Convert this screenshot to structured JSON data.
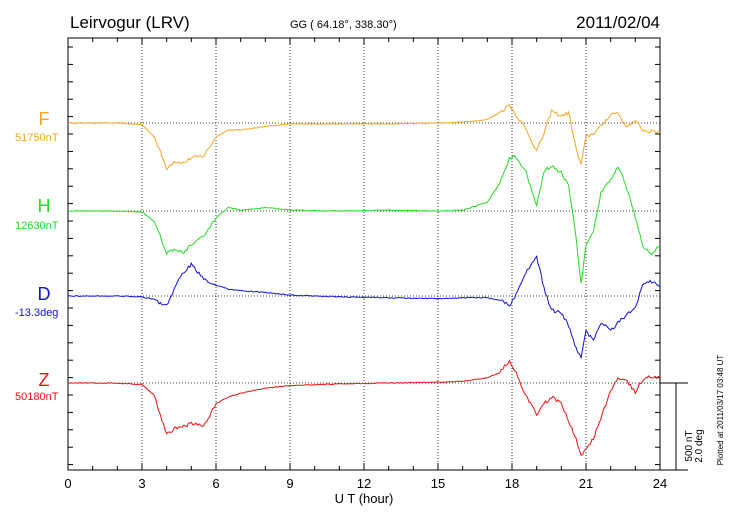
{
  "chart_data": {
    "type": "line",
    "title": "Leirvogur (LRV)",
    "coords": "GG ( 64.18°, 338.30°)",
    "date": "2011/02/04",
    "xlabel": "U T (hour)",
    "xlim": [
      0,
      24
    ],
    "xticks": [
      "0",
      "3",
      "6",
      "9",
      "12",
      "15",
      "18",
      "21",
      "24"
    ],
    "scale_nT": "500 nT",
    "scale_deg": "2.0 deg",
    "plotted_note": "Plotted at 2011/03/17 03:48 UT",
    "units_note": "baseline offsets in nT (D in deg); deviations in nT",
    "series": [
      {
        "name": "F",
        "baseline_label": "51750nT",
        "color": "#f5a623",
        "x": [
          0,
          2,
          3,
          3.5,
          4,
          4.3,
          4.7,
          5,
          5.5,
          6,
          6.5,
          7,
          8,
          9,
          11,
          13,
          15,
          16,
          17,
          17.5,
          17.9,
          18.1,
          18.5,
          19,
          19.3,
          19.6,
          20,
          20.3,
          20.6,
          20.8,
          21,
          21.3,
          21.6,
          22,
          22.3,
          22.6,
          23,
          23.3,
          23.6,
          24
        ],
        "values": [
          0,
          0,
          -10,
          -80,
          -260,
          -220,
          -230,
          -200,
          -190,
          -80,
          -40,
          -40,
          -20,
          -5,
          -5,
          -5,
          0,
          5,
          20,
          60,
          105,
          60,
          -20,
          -160,
          -60,
          70,
          40,
          60,
          -150,
          -240,
          -80,
          -60,
          -20,
          50,
          60,
          -20,
          10,
          -40,
          -50,
          -50
        ]
      },
      {
        "name": "H",
        "baseline_label": "12630nT",
        "color": "#22dd22",
        "x": [
          0,
          2,
          3,
          3.5,
          4,
          4.3,
          4.7,
          5,
          5.5,
          6,
          6.5,
          7,
          8,
          9,
          11,
          13,
          15,
          16,
          17,
          17.5,
          17.9,
          18.1,
          18.5,
          19,
          19.3,
          19.6,
          20,
          20.3,
          20.6,
          20.8,
          21,
          21.3,
          21.6,
          22,
          22.3,
          22.6,
          23,
          23.3,
          23.6,
          24
        ],
        "values": [
          0,
          0,
          -5,
          -60,
          -240,
          -220,
          -240,
          -190,
          -150,
          -40,
          20,
          5,
          20,
          5,
          0,
          5,
          0,
          5,
          50,
          160,
          300,
          320,
          250,
          30,
          230,
          260,
          220,
          140,
          -160,
          -420,
          -200,
          -120,
          100,
          180,
          260,
          160,
          -40,
          -200,
          -250,
          -200
        ]
      },
      {
        "name": "D",
        "baseline_label": "-13.3deg",
        "color": "#1010dd",
        "x": [
          0,
          2,
          3,
          3.5,
          4,
          4.3,
          4.7,
          5,
          5.5,
          6,
          6.5,
          7,
          8,
          9,
          11,
          13,
          15,
          16,
          17,
          17.5,
          17.9,
          18.1,
          18.5,
          19,
          19.3,
          19.6,
          20,
          20.3,
          20.6,
          20.8,
          21,
          21.3,
          21.6,
          22,
          22.3,
          22.6,
          23,
          23.3,
          23.6,
          24
        ],
        "values": [
          0,
          0,
          -5,
          -20,
          -60,
          40,
          140,
          180,
          100,
          60,
          40,
          30,
          20,
          5,
          -5,
          -10,
          -15,
          -10,
          -10,
          -25,
          -50,
          -10,
          120,
          230,
          40,
          -80,
          -100,
          -170,
          -300,
          -360,
          -200,
          -260,
          -150,
          -200,
          -150,
          -120,
          -60,
          60,
          90,
          50
        ]
      },
      {
        "name": "Z",
        "baseline_label": "50180nT",
        "color": "#ee1111",
        "x": [
          0,
          2,
          3,
          3.5,
          4,
          4.3,
          4.7,
          5,
          5.5,
          6,
          6.5,
          7,
          8,
          9,
          11,
          13,
          15,
          16,
          17,
          17.5,
          17.9,
          18.1,
          18.5,
          19,
          19.3,
          19.6,
          20,
          20.3,
          20.6,
          20.8,
          21,
          21.3,
          21.6,
          22,
          22.3,
          22.6,
          23,
          23.3,
          23.6,
          24
        ],
        "values": [
          0,
          0,
          -10,
          -70,
          -300,
          -260,
          -250,
          -230,
          -250,
          -120,
          -80,
          -60,
          -30,
          -15,
          -5,
          0,
          5,
          10,
          30,
          60,
          130,
          80,
          -60,
          -180,
          -120,
          -80,
          -120,
          -220,
          -320,
          -420,
          -380,
          -320,
          -200,
          -50,
          30,
          20,
          -50,
          20,
          40,
          30
        ]
      }
    ]
  }
}
